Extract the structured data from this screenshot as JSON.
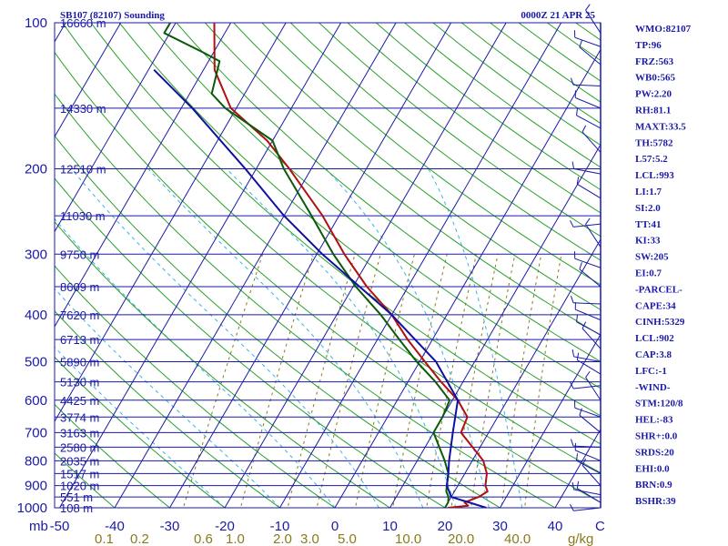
{
  "header": {
    "station": "SB107 (82107) Sounding",
    "time": "0000Z 21 APR 25"
  },
  "indices": [
    "WMO:82107",
    "TP:96",
    "FRZ:563",
    "WB0:565",
    "PW:2.20",
    "RH:81.1",
    "MAXT:33.5",
    "TH:5782",
    "L57:5.2",
    "LCL:993",
    "LI:1.7",
    "SI:2.0",
    "TT:41",
    "KI:33",
    "SW:205",
    "EI:0.7",
    "-PARCEL-",
    "CAPE:34",
    "CINH:5329",
    "LCL:902",
    "CAP:3.8",
    "LFC:-1",
    "-WIND-",
    "STM:120/8",
    "HEL:-83",
    "SHR+:0.0",
    "SRDS:20",
    "EHI:0.0",
    "BRN:0.9",
    "BSHR:39"
  ],
  "colors": {
    "isobar": "#1a1aa6",
    "isotherm": "#1a1aa6",
    "dry_adiabat": "#2aa02a",
    "moist_adiabat": "#39b3e6",
    "mixing_ratio": "#8a7a1a",
    "temperature": "#b01010",
    "dewpoint": "#0a5a0a",
    "parcel": "#1010a0",
    "wind": "#1a1aa6"
  },
  "chart_data": {
    "type": "line",
    "title": "SB107 (82107) Sounding",
    "subtitle": "0000Z 21 APR 25",
    "xlabel": "",
    "ylabel": "mb",
    "xlim": [
      -50,
      50
    ],
    "ylim": [
      1000,
      100
    ],
    "y_scale": "log",
    "skew": true,
    "grid": true,
    "pressure_ticks": [
      "100",
      "200",
      "300",
      "400",
      "500",
      "600",
      "700",
      "800",
      "900",
      "1000"
    ],
    "pressure_unit": "mb",
    "temperature_ticks": [
      "-50",
      "-40",
      "-30",
      "-20",
      "-10",
      "0",
      "10",
      "20",
      "30",
      "40"
    ],
    "temperature_unit": "C",
    "mixing_ratio_ticks": [
      "0.1",
      "0.2",
      "0.6",
      "1.0",
      "2.0",
      "3.0",
      "5.0",
      "10.0",
      "20.0",
      "40.0"
    ],
    "mixing_ratio_unit": "g/kg",
    "height_labels": [
      {
        "p": 100,
        "label": "16660 m"
      },
      {
        "p": 150,
        "label": "14330 m"
      },
      {
        "p": 200,
        "label": "12510 m"
      },
      {
        "p": 250,
        "label": "11030 m"
      },
      {
        "p": 300,
        "label": "9750 m"
      },
      {
        "p": 350,
        "label": "8609 m"
      },
      {
        "p": 400,
        "label": "7620 m"
      },
      {
        "p": 450,
        "label": "6713 m"
      },
      {
        "p": 500,
        "label": "5890 m"
      },
      {
        "p": 550,
        "label": "5130 m"
      },
      {
        "p": 600,
        "label": "4425 m"
      },
      {
        "p": 650,
        "label": "3774 m"
      },
      {
        "p": 700,
        "label": "3163 m"
      },
      {
        "p": 750,
        "label": "2580 m"
      },
      {
        "p": 800,
        "label": "2035 m"
      },
      {
        "p": 850,
        "label": "1517 m"
      },
      {
        "p": 900,
        "label": "1020 m"
      },
      {
        "p": 950,
        "label": "551 m"
      },
      {
        "p": 1000,
        "label": "108 m"
      }
    ],
    "series": [
      {
        "key": "temperature",
        "points": [
          [
            1000,
            20.5
          ],
          [
            990,
            24
          ],
          [
            975,
            23
          ],
          [
            950,
            25
          ],
          [
            925,
            26
          ],
          [
            900,
            25
          ],
          [
            850,
            24
          ],
          [
            800,
            22
          ],
          [
            700,
            15
          ],
          [
            650,
            14.5
          ],
          [
            600,
            11
          ],
          [
            550,
            6
          ],
          [
            500,
            1
          ],
          [
            450,
            -4.5
          ],
          [
            400,
            -10
          ],
          [
            350,
            -17.5
          ],
          [
            300,
            -25
          ],
          [
            250,
            -33
          ],
          [
            200,
            -44
          ],
          [
            175,
            -51
          ],
          [
            150,
            -61
          ],
          [
            125,
            -68
          ],
          [
            100,
            -73
          ]
        ]
      },
      {
        "key": "dewpoint",
        "points": [
          [
            1000,
            20
          ],
          [
            975,
            20
          ],
          [
            950,
            19.5
          ],
          [
            925,
            18.5
          ],
          [
            900,
            18
          ],
          [
            850,
            17
          ],
          [
            800,
            15
          ],
          [
            700,
            10
          ],
          [
            650,
            10
          ],
          [
            600,
            9.5
          ],
          [
            550,
            5
          ],
          [
            500,
            -0.5
          ],
          [
            450,
            -6
          ],
          [
            400,
            -12
          ],
          [
            350,
            -19.5
          ],
          [
            300,
            -27
          ],
          [
            250,
            -35
          ],
          [
            200,
            -45
          ],
          [
            175,
            -50
          ],
          [
            150,
            -62
          ],
          [
            140,
            -66
          ],
          [
            120,
            -68
          ],
          [
            115,
            -72
          ],
          [
            105,
            -81
          ],
          [
            100,
            -81
          ]
        ]
      },
      {
        "key": "parcel",
        "points": [
          [
            1000,
            27.5
          ],
          [
            950,
            20
          ],
          [
            900,
            18
          ],
          [
            850,
            17
          ],
          [
            800,
            15.8
          ],
          [
            700,
            13.5
          ],
          [
            600,
            11
          ],
          [
            500,
            3
          ],
          [
            400,
            -10
          ],
          [
            300,
            -29
          ],
          [
            250,
            -40
          ],
          [
            200,
            -52
          ],
          [
            150,
            -68
          ],
          [
            125,
            -79
          ]
        ]
      }
    ]
  }
}
